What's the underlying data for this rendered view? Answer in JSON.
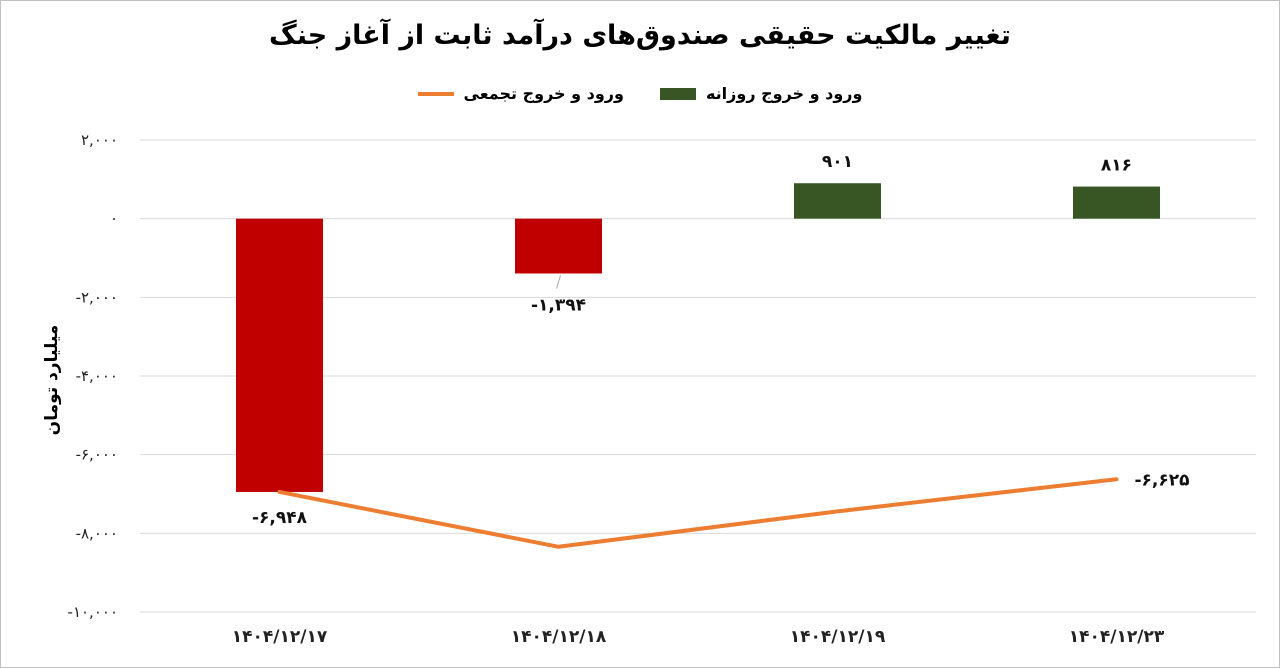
{
  "chart_data": {
    "type": "bar",
    "title": "تغییر مالکیت حقیقی صندوق‌های درآمد ثابت از آغاز جنگ",
    "ylabel": "میلیارد تومان",
    "xlabel": "",
    "ylim": [
      -10000,
      2000
    ],
    "yticks": [
      2000,
      0,
      -2000,
      -4000,
      -6000,
      -8000,
      -10000
    ],
    "ytick_labels": [
      "۲,۰۰۰",
      "۰",
      "-۲,۰۰۰",
      "-۴,۰۰۰",
      "-۶,۰۰۰",
      "-۸,۰۰۰",
      "-۱۰,۰۰۰"
    ],
    "categories": [
      "۱۴۰۴/۱۲/۱۷",
      "۱۴۰۴/۱۲/۱۸",
      "۱۴۰۴/۱۲/۱۹",
      "۱۴۰۴/۱۲/۲۳"
    ],
    "grid": true,
    "legend_position": "top-center",
    "series": [
      {
        "name": "ورود و خروج روزانه",
        "type": "bar",
        "values": [
          -6948,
          -1394,
          901,
          816
        ],
        "labels": [
          "-۶,۹۴۸",
          "-۱,۳۹۴",
          "۹۰۱",
          "۸۱۶"
        ],
        "positive_color": "#375623",
        "negative_color": "#c00000"
      },
      {
        "name": "ورود و خروج تجمعی",
        "type": "line",
        "values": [
          -6948,
          -8342,
          -7441,
          -6625
        ],
        "labels": [
          "",
          "",
          "",
          "-۶,۶۲۵"
        ],
        "color": "#ed7d31"
      }
    ]
  }
}
